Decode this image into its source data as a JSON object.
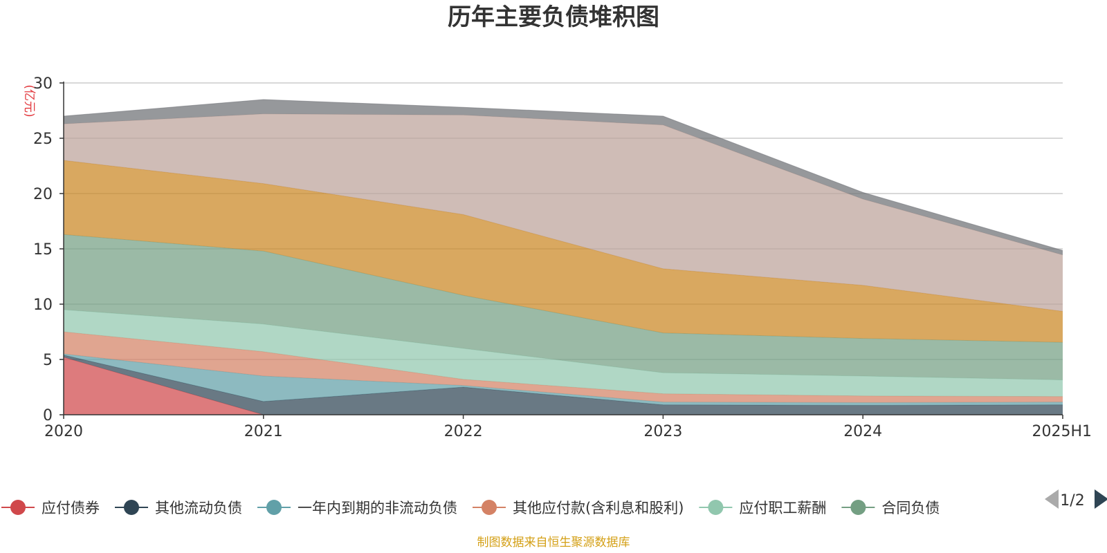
{
  "source_note": "制图数据来自恒生聚源数据库",
  "legend_page": "1/2",
  "chart_data": {
    "type": "area",
    "stacked": true,
    "title": "历年主要负债堆积图",
    "ylabel": "(亿元)",
    "xlabel": "",
    "categories": [
      "2020",
      "2021",
      "2022",
      "2023",
      "2024",
      "2025H1"
    ],
    "ylim": [
      0,
      30
    ],
    "yticks": [
      0,
      5,
      10,
      15,
      20,
      25,
      30
    ],
    "grid": true,
    "legend_position": "bottom",
    "series": [
      {
        "name": "应付债券",
        "color": "#d0484b",
        "values": [
          5.2,
          0,
          0,
          0,
          0,
          0
        ]
      },
      {
        "name": "其他流动负债",
        "color": "#2f4554",
        "values": [
          0.2,
          1.2,
          2.5,
          0.9,
          0.85,
          0.9
        ]
      },
      {
        "name": "一年内到期的非流动负债",
        "color": "#61a0a8",
        "values": [
          0.1,
          2.3,
          0.15,
          0.25,
          0.25,
          0.25
        ]
      },
      {
        "name": "其他应付款(含利息和股利)",
        "color": "#d48265",
        "values": [
          2.0,
          2.2,
          0.55,
          0.75,
          0.6,
          0.5
        ]
      },
      {
        "name": "应付职工薪酬",
        "color": "#91c7ae",
        "values": [
          2.0,
          2.5,
          2.8,
          1.9,
          1.8,
          1.5
        ]
      },
      {
        "name": "合同负债",
        "color": "#749f83",
        "values": [
          6.8,
          6.6,
          4.8,
          3.6,
          3.4,
          3.4
        ]
      },
      {
        "name": "",
        "color": "#ca8622",
        "values": [
          6.7,
          6.1,
          7.3,
          5.8,
          4.8,
          2.8
        ]
      },
      {
        "name": "",
        "color": "#bda29a",
        "values": [
          3.3,
          6.3,
          9.0,
          13.0,
          7.8,
          5.1
        ]
      },
      {
        "name": "",
        "color": "#6e7074",
        "values": [
          0.7,
          1.3,
          0.7,
          0.8,
          0.6,
          0.4
        ]
      }
    ]
  }
}
